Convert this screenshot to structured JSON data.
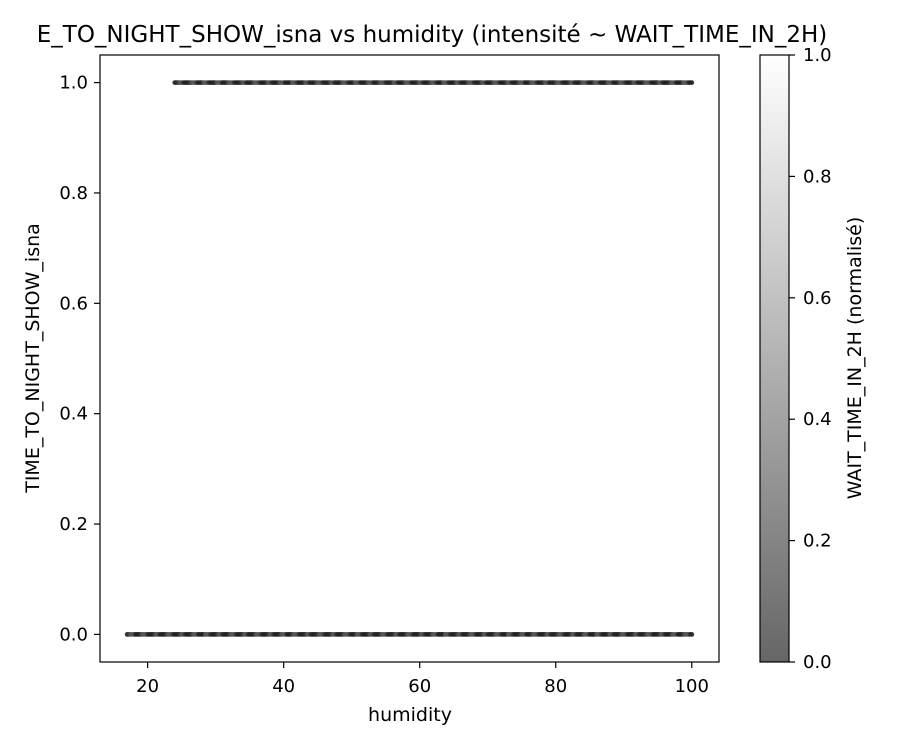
{
  "chart_data": {
    "type": "scatter",
    "title": "E_TO_NIGHT_SHOW_isna vs humidity (intensité ~ WAIT_TIME_IN_2H)",
    "xlabel": "humidity",
    "ylabel": "TIME_TO_NIGHT_SHOW_isna",
    "xlim": [
      13,
      104
    ],
    "ylim": [
      -0.05,
      1.05
    ],
    "xticks": [
      "20",
      "40",
      "60",
      "80",
      "100"
    ],
    "yticks": [
      "0.0",
      "0.2",
      "0.4",
      "0.6",
      "0.8",
      "1.0"
    ],
    "grid": false,
    "legend": "none",
    "point_color": "#222222",
    "series": [
      {
        "y": 0,
        "x_range": [
          17,
          100
        ]
      },
      {
        "y": 1,
        "x_range": [
          24,
          100
        ]
      }
    ],
    "colorbar": {
      "label": "WAIT_TIME_IN_2H (normalisé)",
      "range": [
        0,
        1
      ],
      "ticks": [
        "0.0",
        "0.2",
        "0.4",
        "0.6",
        "0.8",
        "1.0"
      ],
      "color_low": "#666666",
      "color_high": "#ffffff"
    }
  }
}
